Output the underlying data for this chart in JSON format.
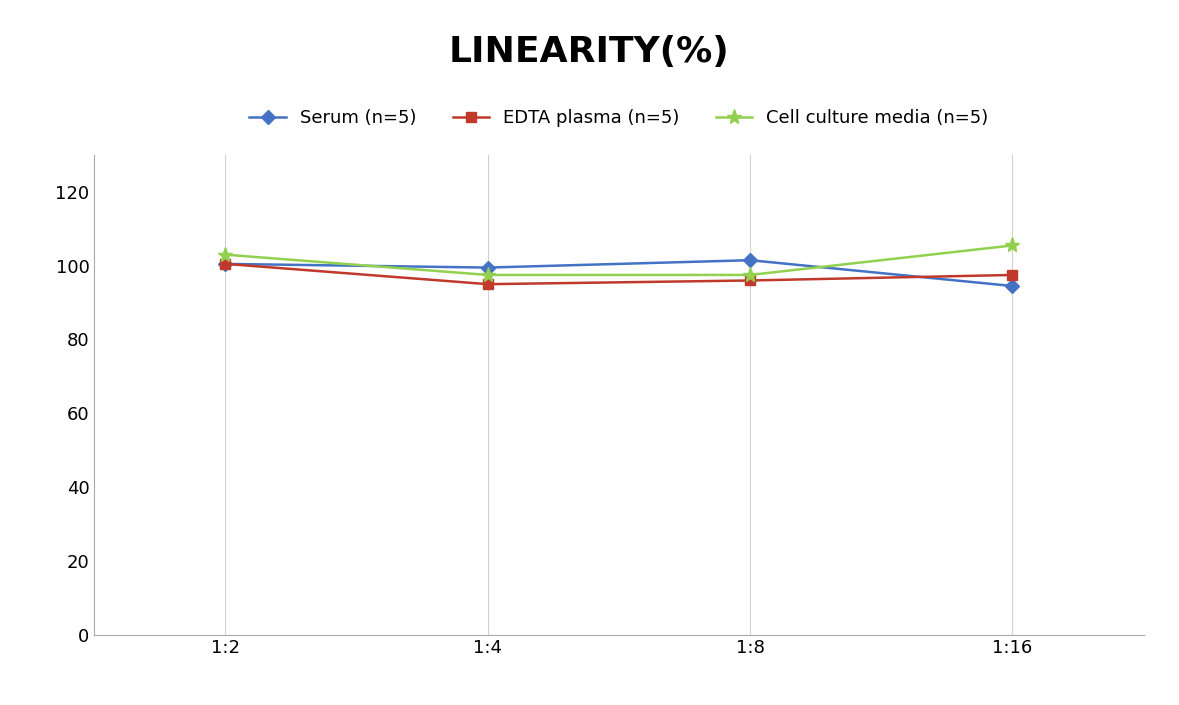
{
  "title": "LINEARITY(%)",
  "title_fontsize": 26,
  "title_fontweight": "bold",
  "x_labels": [
    "1:2",
    "1:4",
    "1:8",
    "1:16"
  ],
  "x_values": [
    0,
    1,
    2,
    3
  ],
  "series": [
    {
      "label": "Serum (n=5)",
      "values": [
        100.5,
        99.5,
        101.5,
        94.5
      ],
      "color": "#4472C4",
      "marker": "D",
      "markersize": 7,
      "linewidth": 1.8
    },
    {
      "label": "EDTA plasma (n=5)",
      "values": [
        100.5,
        95.0,
        96.0,
        97.5
      ],
      "color": "#C0392B",
      "marker": "s",
      "markersize": 7,
      "linewidth": 1.8
    },
    {
      "label": "Cell culture media (n=5)",
      "values": [
        103.0,
        97.5,
        97.5,
        105.5
      ],
      "color": "#92D050",
      "marker": "*",
      "markersize": 11,
      "linewidth": 1.8
    }
  ],
  "ylim": [
    0,
    130
  ],
  "yticks": [
    0,
    20,
    40,
    60,
    80,
    100,
    120
  ],
  "grid_color": "#D0D0D0",
  "grid_linewidth": 0.8,
  "background_color": "#FFFFFF",
  "legend_fontsize": 13,
  "tick_fontsize": 13
}
